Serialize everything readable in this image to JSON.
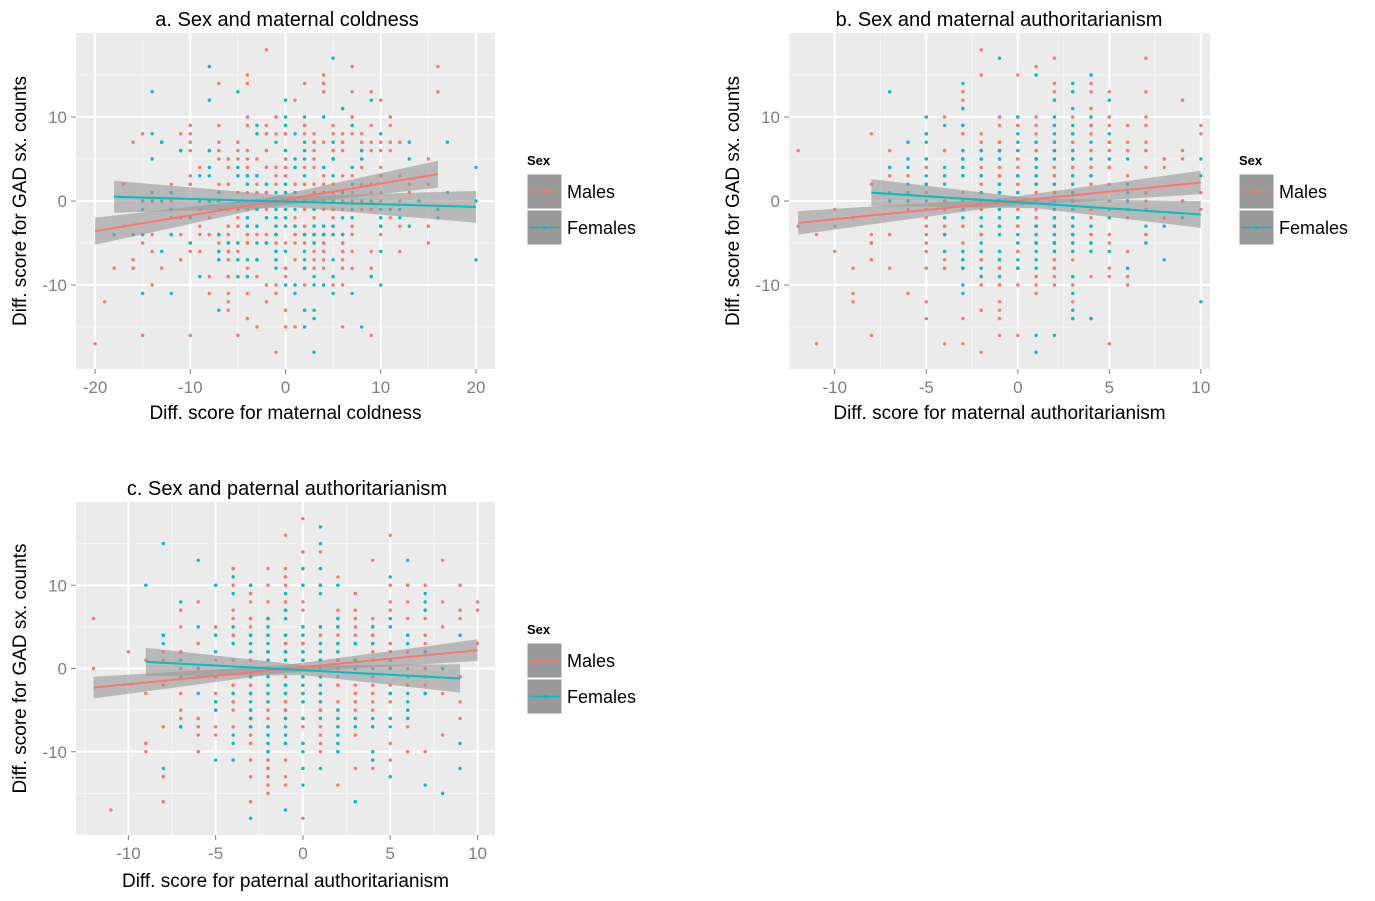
{
  "legend": {
    "title": "Sex",
    "entries": [
      {
        "label": "Males",
        "color": "#F8766D"
      },
      {
        "label": "Females",
        "color": "#00BFC4"
      }
    ]
  },
  "style": {
    "panel_bg": "#EBEBEB",
    "grid_major": "#FFFFFF",
    "grid_minor": "#F5F5F5",
    "ribbon": "#999999",
    "male_color": "#F8766D",
    "female_color": "#00BFC4"
  },
  "chart_data": [
    {
      "type": "scatter",
      "title": "a. Sex and maternal coldness",
      "xlabel": "Diff. score for maternal coldness",
      "ylabel": "Diff. score for GAD sx. counts",
      "xlim": [
        -22,
        22
      ],
      "ylim": [
        -20,
        20
      ],
      "xticks": [
        -20,
        -10,
        0,
        10,
        20
      ],
      "yticks": [
        -10,
        0,
        10
      ],
      "grid": true,
      "legend_position": "right",
      "x_range": {
        "males": [
          -20,
          16
        ],
        "females": [
          -18,
          20
        ]
      },
      "x_spread": 7,
      "seed": 11,
      "fits": {
        "males": {
          "x": [
            -20,
            16
          ],
          "y": [
            -3.6,
            3.2
          ],
          "ci_halfwidth_ends": 1.6
        },
        "females": {
          "x": [
            -18,
            20
          ],
          "y": [
            0.5,
            -0.7
          ],
          "ci_halfwidth_ends": 1.9
        }
      },
      "labeled_points": {
        "males": [
          [
            -20,
            -17
          ],
          [
            -19,
            -12
          ],
          [
            -2,
            18
          ],
          [
            16,
            13
          ],
          [
            -4,
            15
          ],
          [
            4,
            15
          ]
        ],
        "females": [
          [
            -14,
            13
          ],
          [
            -8,
            16
          ],
          [
            5,
            17
          ],
          [
            3,
            -18
          ],
          [
            -12,
            -11
          ],
          [
            20,
            0
          ]
        ]
      }
    },
    {
      "type": "scatter",
      "title": "b. Sex and maternal authoritarianism",
      "xlabel": "Diff. score for maternal authoritarianism",
      "ylabel": "Diff. score for GAD sx. counts",
      "xlim": [
        -12.5,
        10.5
      ],
      "ylim": [
        -20,
        20
      ],
      "xticks": [
        -10,
        -5,
        0,
        5,
        10
      ],
      "yticks": [
        -10,
        0,
        10
      ],
      "grid": true,
      "legend_position": "right",
      "x_range": {
        "males": [
          -12,
          10
        ],
        "females": [
          -8,
          10
        ]
      },
      "x_spread": 4,
      "seed": 23,
      "fits": {
        "males": {
          "x": [
            -12,
            10
          ],
          "y": [
            -2.6,
            2.2
          ],
          "ci_halfwidth_ends": 1.4
        },
        "females": {
          "x": [
            -8,
            10
          ],
          "y": [
            1.0,
            -1.6
          ],
          "ci_halfwidth_ends": 1.6
        }
      },
      "labeled_points": {
        "males": [
          [
            -12,
            6
          ],
          [
            -11,
            -17
          ],
          [
            -9,
            -12
          ],
          [
            -8,
            -16
          ],
          [
            7,
            13
          ],
          [
            -2,
            18
          ],
          [
            10,
            8
          ]
        ],
        "females": [
          [
            -1,
            17
          ],
          [
            4,
            15
          ],
          [
            -7,
            13
          ],
          [
            10,
            5
          ],
          [
            10,
            -12
          ],
          [
            1,
            -18
          ]
        ]
      }
    },
    {
      "type": "scatter",
      "title": "c. Sex and paternal authoritarianism",
      "xlabel": "Diff. score for paternal authoritarianism",
      "ylabel": "Diff. score for GAD sx. counts",
      "xlim": [
        -13,
        11
      ],
      "ylim": [
        -20,
        20
      ],
      "xticks": [
        -10,
        -5,
        0,
        5,
        10
      ],
      "yticks": [
        -10,
        0,
        10
      ],
      "grid": true,
      "legend_position": "right",
      "x_range": {
        "males": [
          -12,
          10
        ],
        "females": [
          -9,
          9
        ]
      },
      "x_spread": 4,
      "seed": 37,
      "fits": {
        "males": {
          "x": [
            -12,
            10
          ],
          "y": [
            -2.3,
            2.2
          ],
          "ci_halfwidth_ends": 1.3
        },
        "females": {
          "x": [
            -9,
            9
          ],
          "y": [
            0.8,
            -1.2
          ],
          "ci_halfwidth_ends": 1.7
        }
      },
      "labeled_points": {
        "males": [
          [
            -12,
            6
          ],
          [
            -11,
            -17
          ],
          [
            -8,
            -16
          ],
          [
            0,
            18
          ],
          [
            10,
            7
          ],
          [
            10,
            8
          ]
        ],
        "females": [
          [
            -8,
            15
          ],
          [
            1,
            17
          ],
          [
            -3,
            -18
          ],
          [
            9,
            -12
          ],
          [
            8,
            -15
          ],
          [
            3,
            -16
          ]
        ]
      }
    }
  ]
}
